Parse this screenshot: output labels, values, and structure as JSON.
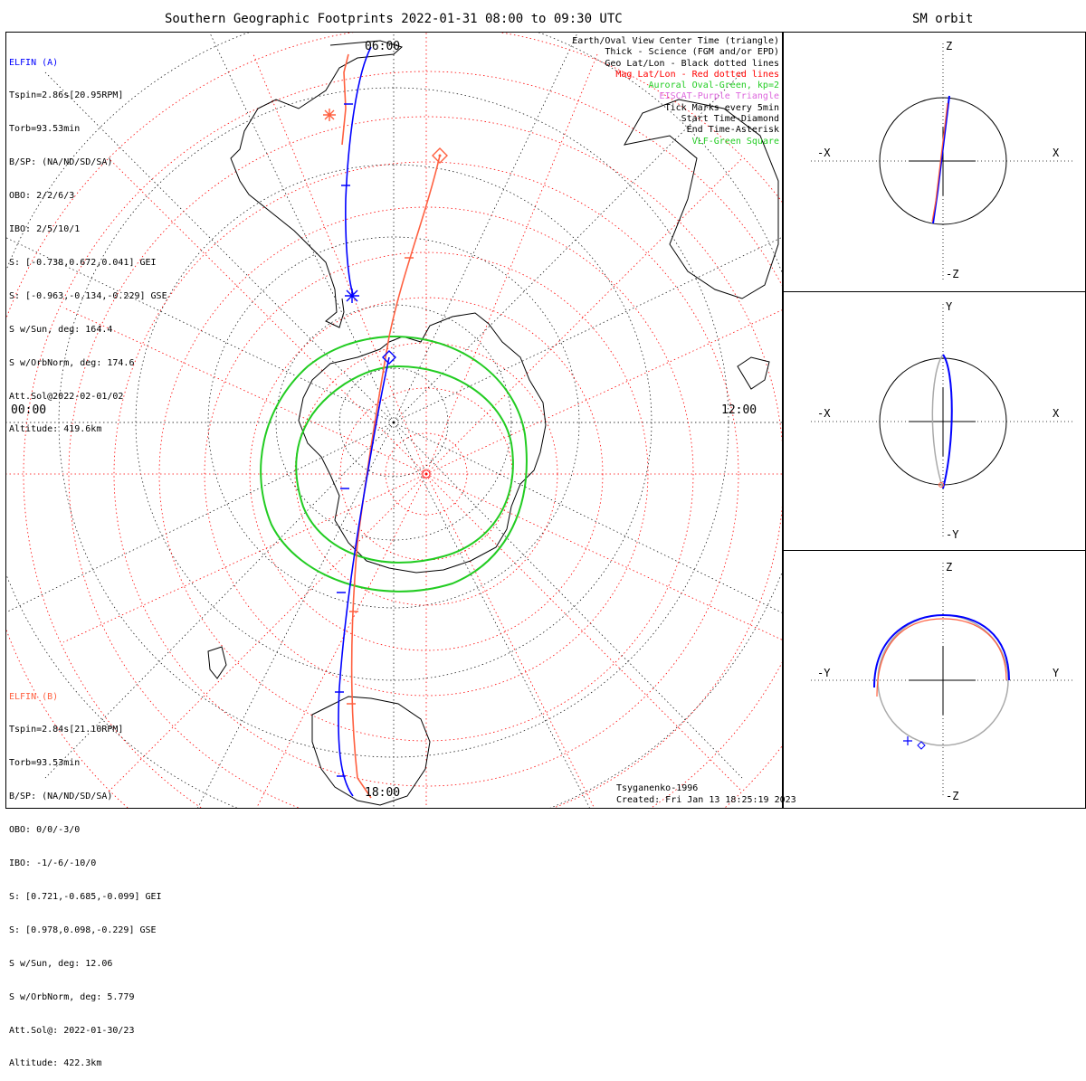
{
  "titles": {
    "main": "Southern Geographic Footprints 2022-01-31 08:00 to 09:30 UTC",
    "sm": "SM orbit"
  },
  "elfin_a": {
    "lines": [
      "ELFIN (A)",
      "Tspin=2.86s[20.95RPM]",
      "Torb=93.53min",
      "B/SP: (NA/ND/SD/SA)",
      "OBO: 2/2/6/3",
      "IBO: 2/5/10/1",
      "S: [-0.738,0.672,0.041] GEI",
      "S: [-0.963,-0.134,-0.229] GSE",
      "S w/Sun, deg: 164.4",
      "S w/OrbNorm, deg: 174.6",
      "Att.Sol@2022-02-01/02",
      "Altitude: 419.6km"
    ],
    "color": "#0000ff"
  },
  "elfin_b": {
    "lines": [
      "ELFIN (B)",
      "Tspin=2.84s[21.10RPM]",
      "Torb=93.53min",
      "B/SP: (NA/ND/SD/SA)",
      "OBO: 0/0/-3/0",
      "IBO: -1/-6/-10/0",
      "S: [0.721,-0.685,-0.099] GEI",
      "S: [0.978,0.098,-0.229] GSE",
      "S w/Sun, deg: 12.06",
      "S w/OrbNorm, deg: 5.779",
      "Att.Sol@: 2022-01-30/23",
      "Altitude: 422.3km"
    ],
    "color": "#ff6040"
  },
  "legend": [
    {
      "text": "Earth/Oval View Center Time (triangle)",
      "color": "#000000"
    },
    {
      "text": "Thick - Science (FGM and/or EPD)",
      "color": "#000000"
    },
    {
      "text": "Geo Lat/Lon - Black dotted lines",
      "color": "#000000"
    },
    {
      "text": "Mag Lat/Lon - Red dotted lines",
      "color": "#ff0000"
    },
    {
      "text": "Auroral Oval-Green, kp=2",
      "color": "#22cc22"
    },
    {
      "text": "EISCAT-Purple Triangle",
      "color": "#dd66dd"
    },
    {
      "text": "Tick Marks every 5min",
      "color": "#000000"
    },
    {
      "text": "Start Time-Diamond",
      "color": "#000000"
    },
    {
      "text": "End Time-Asterisk",
      "color": "#000000"
    },
    {
      "text": "VLF-Green Square",
      "color": "#22cc22"
    }
  ],
  "map_labels": {
    "top": "06:00",
    "left": "00:00",
    "right": "12:00",
    "bottom": "18:00"
  },
  "credits": {
    "model": "Tsyganenko-1996",
    "created": "Created: Fri Jan 13 18:25:19 2023"
  },
  "sm_panels": [
    {
      "top": "Z",
      "bottom": "-Z",
      "left": "-X",
      "right": "X"
    },
    {
      "top": "Y",
      "bottom": "-Y",
      "left": "-X",
      "right": "X"
    },
    {
      "top": "Z",
      "bottom": "-Z",
      "left": "-Y",
      "right": "Y"
    }
  ]
}
